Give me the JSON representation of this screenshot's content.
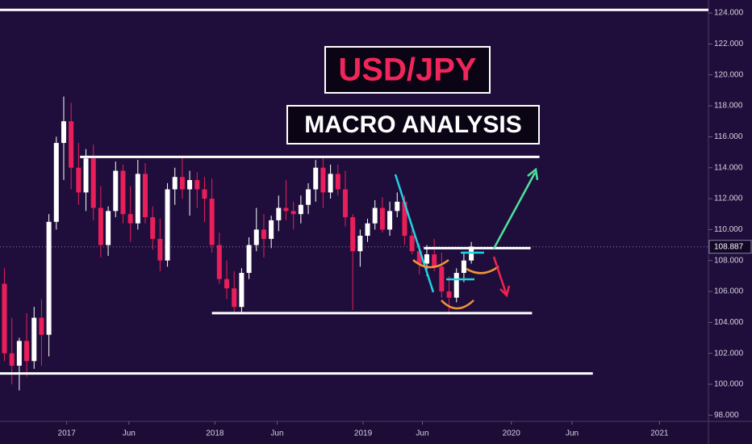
{
  "chart_data": {
    "type": "candlestick",
    "title": "USD/JPY",
    "subtitle": "MACRO ANALYSIS",
    "up_color": "#ffffff",
    "down_color": "#e91e5a",
    "x": [
      2016.58,
      2016.63,
      2016.68,
      2016.73,
      2016.78,
      2016.83,
      2016.88,
      2016.93,
      2016.98,
      2017.03,
      2017.08,
      2017.13,
      2017.18,
      2017.23,
      2017.28,
      2017.33,
      2017.38,
      2017.43,
      2017.48,
      2017.53,
      2017.58,
      2017.63,
      2017.68,
      2017.73,
      2017.78,
      2017.83,
      2017.88,
      2017.93,
      2017.98,
      2018.03,
      2018.08,
      2018.13,
      2018.18,
      2018.23,
      2018.28,
      2018.33,
      2018.38,
      2018.43,
      2018.48,
      2018.53,
      2018.58,
      2018.63,
      2018.68,
      2018.73,
      2018.78,
      2018.83,
      2018.88,
      2018.93,
      2018.98,
      2019.03,
      2019.08,
      2019.13,
      2019.18,
      2019.23,
      2019.28,
      2019.33,
      2019.38,
      2019.43,
      2019.48,
      2019.53,
      2019.58,
      2019.63,
      2019.68,
      2019.73
    ],
    "open": [
      106.5,
      102.0,
      101.2,
      102.8,
      101.5,
      104.3,
      103.2,
      110.5,
      115.6,
      117.0,
      114.0,
      112.4,
      114.6,
      111.4,
      109.0,
      111.2,
      113.8,
      111.0,
      110.4,
      113.6,
      110.8,
      109.4,
      108.0,
      112.6,
      113.4,
      112.6,
      113.2,
      112.6,
      112.0,
      109.0,
      106.8,
      106.2,
      105.0,
      107.2,
      109.0,
      110.0,
      109.4,
      110.6,
      111.4,
      111.2,
      111.0,
      111.6,
      112.6,
      114.0,
      112.4,
      113.6,
      112.6,
      110.8,
      108.6,
      109.6,
      110.4,
      111.4,
      110.0,
      111.2,
      111.8,
      109.6,
      108.6,
      107.8,
      108.4,
      107.6,
      106.0,
      105.6,
      107.2,
      108.0
    ],
    "high": [
      107.5,
      104.3,
      103.0,
      104.6,
      105.0,
      105.5,
      111.0,
      116.0,
      118.6,
      118.2,
      115.6,
      115.2,
      115.5,
      112.8,
      111.5,
      114.4,
      114.2,
      112.8,
      114.5,
      114.3,
      111.5,
      110.7,
      113.0,
      114.0,
      114.7,
      113.8,
      113.7,
      113.4,
      113.3,
      109.8,
      108.0,
      107.3,
      107.5,
      109.5,
      111.4,
      111.0,
      110.9,
      112.2,
      113.2,
      111.8,
      112.2,
      113.0,
      114.5,
      114.6,
      114.2,
      114.2,
      113.8,
      111.0,
      110.0,
      110.7,
      111.9,
      112.1,
      111.8,
      112.4,
      112.2,
      110.0,
      109.1,
      109.0,
      109.4,
      108.5,
      107.0,
      107.5,
      108.5,
      109.2
    ],
    "low": [
      101.5,
      100.0,
      99.6,
      100.5,
      101.0,
      101.2,
      101.8,
      110.0,
      113.2,
      112.6,
      111.6,
      111.2,
      110.6,
      108.2,
      108.3,
      110.8,
      110.4,
      109.2,
      110.0,
      110.4,
      108.7,
      107.3,
      107.6,
      111.6,
      112.0,
      110.9,
      111.4,
      110.5,
      108.5,
      106.5,
      105.5,
      104.6,
      104.6,
      106.8,
      108.6,
      108.2,
      108.8,
      109.9,
      110.6,
      110.0,
      110.4,
      111.0,
      111.8,
      111.4,
      112.0,
      112.2,
      110.2,
      104.8,
      107.6,
      109.2,
      110.0,
      109.8,
      109.6,
      110.8,
      109.0,
      108.4,
      107.1,
      107.0,
      107.3,
      105.6,
      104.5,
      105.3,
      106.6,
      107.8
    ],
    "close": [
      102.0,
      101.2,
      102.8,
      101.5,
      104.3,
      103.2,
      110.5,
      115.6,
      117.0,
      114.0,
      112.4,
      114.6,
      111.4,
      109.0,
      111.2,
      113.8,
      111.0,
      110.4,
      113.6,
      110.8,
      109.4,
      108.0,
      112.6,
      113.4,
      112.6,
      113.2,
      112.6,
      112.0,
      109.0,
      106.8,
      106.2,
      105.0,
      107.2,
      109.0,
      110.0,
      109.4,
      110.6,
      111.4,
      111.2,
      111.0,
      111.6,
      112.6,
      114.0,
      112.4,
      113.6,
      112.6,
      110.8,
      108.6,
      109.6,
      110.4,
      111.4,
      110.0,
      111.2,
      111.8,
      109.6,
      108.6,
      107.8,
      108.4,
      107.6,
      106.0,
      105.6,
      107.2,
      108.0,
      108.9
    ],
    "levels": [
      {
        "value": 124.2,
        "from": 2016.55,
        "to": 2021.33
      },
      {
        "value": 114.7,
        "from": 2017.09,
        "to": 2020.19
      },
      {
        "value": 108.8,
        "from": 2019.41,
        "to": 2020.13
      },
      {
        "value": 104.6,
        "from": 2017.98,
        "to": 2020.14
      },
      {
        "value": 100.7,
        "from": 2016.55,
        "to": 2020.55
      }
    ],
    "last_price": 108.887,
    "xlim": [
      2016.55,
      2021.33
    ],
    "ylim": [
      97.6,
      124.84
    ],
    "xticks": [
      {
        "value": 2017,
        "label": "2017"
      },
      {
        "value": 2017.42,
        "label": "Jun"
      },
      {
        "value": 2018,
        "label": "2018"
      },
      {
        "value": 2018.42,
        "label": "Jun"
      },
      {
        "value": 2019,
        "label": "2019"
      },
      {
        "value": 2019.4,
        "label": "Jun"
      },
      {
        "value": 2020,
        "label": "2020"
      },
      {
        "value": 2020.41,
        "label": "Jun"
      },
      {
        "value": 2021,
        "label": "2021"
      }
    ],
    "yticks": [
      {
        "value": 98,
        "label": "98.000"
      },
      {
        "value": 100,
        "label": "100.000"
      },
      {
        "value": 102,
        "label": "102.000"
      },
      {
        "value": 104,
        "label": "104.000"
      },
      {
        "value": 106,
        "label": "106.000"
      },
      {
        "value": 108,
        "label": "108.000"
      },
      {
        "value": 110,
        "label": "110.000"
      },
      {
        "value": 112,
        "label": "112.000"
      },
      {
        "value": 114,
        "label": "114.000"
      },
      {
        "value": 116,
        "label": "116.000"
      },
      {
        "value": 118,
        "label": "118.000"
      },
      {
        "value": 120,
        "label": "120.000"
      },
      {
        "value": 122,
        "label": "122.000"
      },
      {
        "value": 124,
        "label": "124.000"
      }
    ],
    "grid": false
  }
}
